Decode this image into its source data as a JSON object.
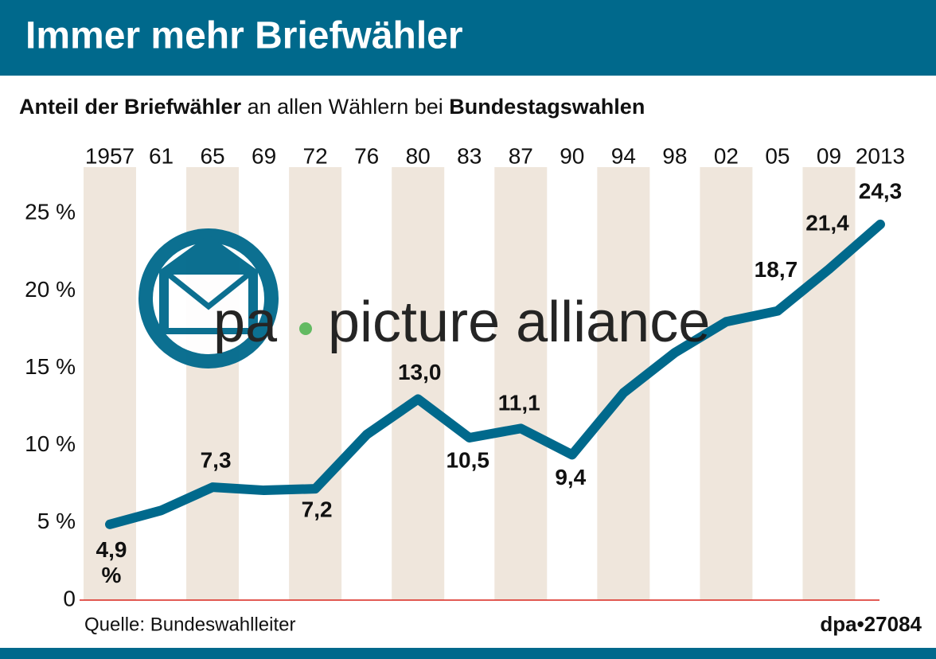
{
  "chart_data": {
    "type": "line",
    "title": "Immer mehr Briefwähler",
    "subtitle": [
      "Anteil der Briefwähler",
      "an allen Wählern bei",
      "Bundestagswahlen"
    ],
    "categories": [
      "1957",
      "61",
      "65",
      "69",
      "72",
      "76",
      "80",
      "83",
      "87",
      "90",
      "94",
      "98",
      "02",
      "05",
      "09",
      "2013"
    ],
    "series": [
      {
        "name": null,
        "color": "#00698c",
        "values": [
          4.9,
          5.8,
          7.3,
          7.1,
          7.2,
          10.7,
          13.0,
          10.5,
          11.1,
          9.4,
          13.4,
          16.0,
          18.0,
          18.7,
          21.4,
          24.3
        ],
        "value_labels": [
          "4,9 %",
          null,
          "7,3",
          null,
          "7,2",
          null,
          "13,0",
          "10,5",
          "11,1",
          "9,4",
          null,
          null,
          null,
          "18,7",
          "21,4",
          "24,3"
        ]
      }
    ],
    "ylim": [
      0,
      28
    ],
    "yticks": [
      0,
      {
        "value": 5,
        "label": "5 %"
      },
      {
        "value": 10,
        "label": "10 %"
      },
      {
        "value": 15,
        "label": "15 %"
      },
      {
        "value": 20,
        "label": "20 %"
      },
      {
        "value": 25,
        "label": "25 %"
      }
    ],
    "source": "Quelle: Bundeswahlleiter",
    "credit": "dpa•27084",
    "watermark": [
      "pa",
      "picture alliance"
    ]
  }
}
